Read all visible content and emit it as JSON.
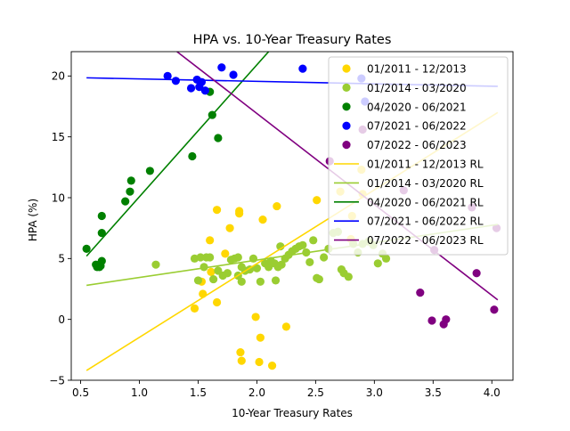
{
  "chart_data": {
    "type": "scatter",
    "title": "HPA vs. 10-Year Treasury Rates",
    "xlabel": "10-Year Treasury Rates",
    "ylabel": "HPA (%)",
    "xlim": [
      0.42,
      4.18
    ],
    "ylim": [
      -5,
      22
    ],
    "xticks": [
      0.5,
      1.0,
      1.5,
      2.0,
      2.5,
      3.0,
      3.5,
      4.0
    ],
    "xtick_labels": [
      "0.5",
      "1.0",
      "1.5",
      "2.0",
      "2.5",
      "3.0",
      "3.5",
      "4.0"
    ],
    "yticks": [
      -5,
      0,
      5,
      10,
      15,
      20
    ],
    "ytick_labels": [
      "−5",
      "0",
      "5",
      "10",
      "15",
      "20"
    ],
    "grid": false,
    "legend_position": "top-right",
    "series": [
      {
        "name": "01/2011 - 12/2013",
        "color": "#ffd700",
        "points": [
          [
            1.47,
            0.9
          ],
          [
            1.54,
            2.1
          ],
          [
            1.53,
            3.1
          ],
          [
            1.61,
            3.9
          ],
          [
            1.66,
            1.4
          ],
          [
            1.6,
            6.5
          ],
          [
            1.66,
            9.0
          ],
          [
            1.77,
            7.5
          ],
          [
            1.73,
            5.4
          ],
          [
            1.85,
            8.7
          ],
          [
            1.85,
            8.9
          ],
          [
            2.05,
            8.2
          ],
          [
            2.17,
            9.3
          ],
          [
            1.99,
            0.2
          ],
          [
            2.03,
            -1.5
          ],
          [
            1.86,
            -2.7
          ],
          [
            1.87,
            -3.4
          ],
          [
            2.02,
            -3.5
          ],
          [
            2.13,
            -3.8
          ],
          [
            2.25,
            -0.6
          ],
          [
            2.51,
            9.8
          ],
          [
            2.81,
            8.5
          ],
          [
            2.71,
            10.5
          ],
          [
            2.89,
            12.3
          ],
          [
            2.8,
            6.6
          ],
          [
            2.9,
            10.3
          ]
        ]
      },
      {
        "name": "01/2014 - 03/2020",
        "color": "#9acd32",
        "points": [
          [
            1.14,
            4.5
          ],
          [
            1.47,
            5.0
          ],
          [
            1.52,
            5.1
          ],
          [
            1.57,
            5.1
          ],
          [
            1.6,
            5.1
          ],
          [
            1.5,
            3.2
          ],
          [
            1.55,
            4.3
          ],
          [
            1.63,
            3.3
          ],
          [
            1.67,
            4.0
          ],
          [
            1.71,
            3.6
          ],
          [
            1.75,
            3.8
          ],
          [
            1.78,
            4.9
          ],
          [
            1.81,
            5.0
          ],
          [
            1.84,
            5.1
          ],
          [
            1.87,
            4.3
          ],
          [
            1.9,
            4.0
          ],
          [
            1.94,
            4.1
          ],
          [
            1.97,
            5.0
          ],
          [
            2.0,
            4.2
          ],
          [
            2.03,
            3.1
          ],
          [
            2.07,
            4.6
          ],
          [
            2.1,
            4.3
          ],
          [
            2.12,
            4.8
          ],
          [
            2.15,
            4.6
          ],
          [
            2.18,
            4.3
          ],
          [
            2.21,
            4.5
          ],
          [
            2.24,
            5.0
          ],
          [
            2.27,
            5.3
          ],
          [
            2.3,
            5.6
          ],
          [
            2.33,
            5.8
          ],
          [
            2.36,
            6.0
          ],
          [
            2.39,
            6.1
          ],
          [
            2.42,
            5.5
          ],
          [
            2.45,
            4.7
          ],
          [
            2.48,
            6.5
          ],
          [
            2.51,
            3.4
          ],
          [
            2.53,
            3.3
          ],
          [
            2.57,
            5.1
          ],
          [
            2.61,
            5.8
          ],
          [
            2.65,
            7.1
          ],
          [
            2.69,
            7.2
          ],
          [
            2.72,
            4.1
          ],
          [
            2.74,
            3.8
          ],
          [
            2.78,
            3.5
          ],
          [
            2.82,
            6.2
          ],
          [
            2.86,
            5.5
          ],
          [
            2.9,
            6.2
          ],
          [
            2.95,
            6.4
          ],
          [
            2.99,
            6.1
          ],
          [
            3.03,
            4.6
          ],
          [
            3.07,
            5.4
          ],
          [
            3.1,
            5.0
          ],
          [
            2.2,
            6.0
          ],
          [
            1.84,
            3.6
          ],
          [
            2.16,
            3.2
          ],
          [
            1.87,
            3.1
          ]
        ]
      },
      {
        "name": "04/2020 - 06/2021",
        "color": "#008000",
        "points": [
          [
            0.55,
            5.8
          ],
          [
            0.63,
            4.5
          ],
          [
            0.64,
            4.3
          ],
          [
            0.66,
            4.3
          ],
          [
            0.67,
            4.4
          ],
          [
            0.68,
            4.8
          ],
          [
            0.68,
            7.1
          ],
          [
            0.68,
            8.5
          ],
          [
            0.88,
            9.7
          ],
          [
            0.92,
            10.5
          ],
          [
            0.93,
            11.4
          ],
          [
            1.09,
            12.2
          ],
          [
            1.45,
            13.4
          ],
          [
            1.62,
            16.8
          ],
          [
            1.67,
            14.9
          ],
          [
            1.6,
            18.7
          ]
        ]
      },
      {
        "name": "07/2021 - 06/2022",
        "color": "#0000ff",
        "points": [
          [
            1.24,
            20.0
          ],
          [
            1.31,
            19.6
          ],
          [
            1.44,
            19.0
          ],
          [
            1.49,
            19.7
          ],
          [
            1.51,
            19.1
          ],
          [
            1.53,
            19.5
          ],
          [
            1.56,
            18.8
          ],
          [
            1.7,
            20.7
          ],
          [
            1.8,
            20.1
          ],
          [
            2.39,
            20.6
          ],
          [
            2.89,
            19.8
          ],
          [
            2.92,
            17.9
          ]
        ]
      },
      {
        "name": "07/2022 - 06/2023",
        "color": "#800080",
        "points": [
          [
            2.62,
            13.0
          ],
          [
            2.9,
            15.6
          ],
          [
            3.25,
            10.6
          ],
          [
            3.39,
            2.2
          ],
          [
            3.49,
            -0.1
          ],
          [
            3.51,
            5.7
          ],
          [
            3.59,
            -0.4
          ],
          [
            3.61,
            0.0
          ],
          [
            3.87,
            3.8
          ],
          [
            3.83,
            9.2
          ],
          [
            4.02,
            0.8
          ],
          [
            4.04,
            7.5
          ]
        ]
      }
    ],
    "regression_lines": [
      {
        "name": "01/2011 - 12/2013 RL",
        "color": "#ffd700",
        "x": [
          0.55,
          4.05
        ],
        "y": [
          -4.2,
          17.0
        ]
      },
      {
        "name": "01/2014 - 03/2020 RL",
        "color": "#9acd32",
        "x": [
          0.55,
          4.05
        ],
        "y": [
          2.8,
          7.8
        ]
      },
      {
        "name": "04/2020 - 06/2021 RL",
        "color": "#008000",
        "x": [
          0.55,
          2.1
        ],
        "y": [
          5.2,
          22.0
        ]
      },
      {
        "name": "07/2021 - 06/2022 RL",
        "color": "#0000ff",
        "x": [
          0.55,
          4.05
        ],
        "y": [
          19.85,
          19.15
        ]
      },
      {
        "name": "07/2022 - 06/2023 RL",
        "color": "#800080",
        "x": [
          1.32,
          4.05
        ],
        "y": [
          22.0,
          1.6
        ]
      }
    ]
  }
}
